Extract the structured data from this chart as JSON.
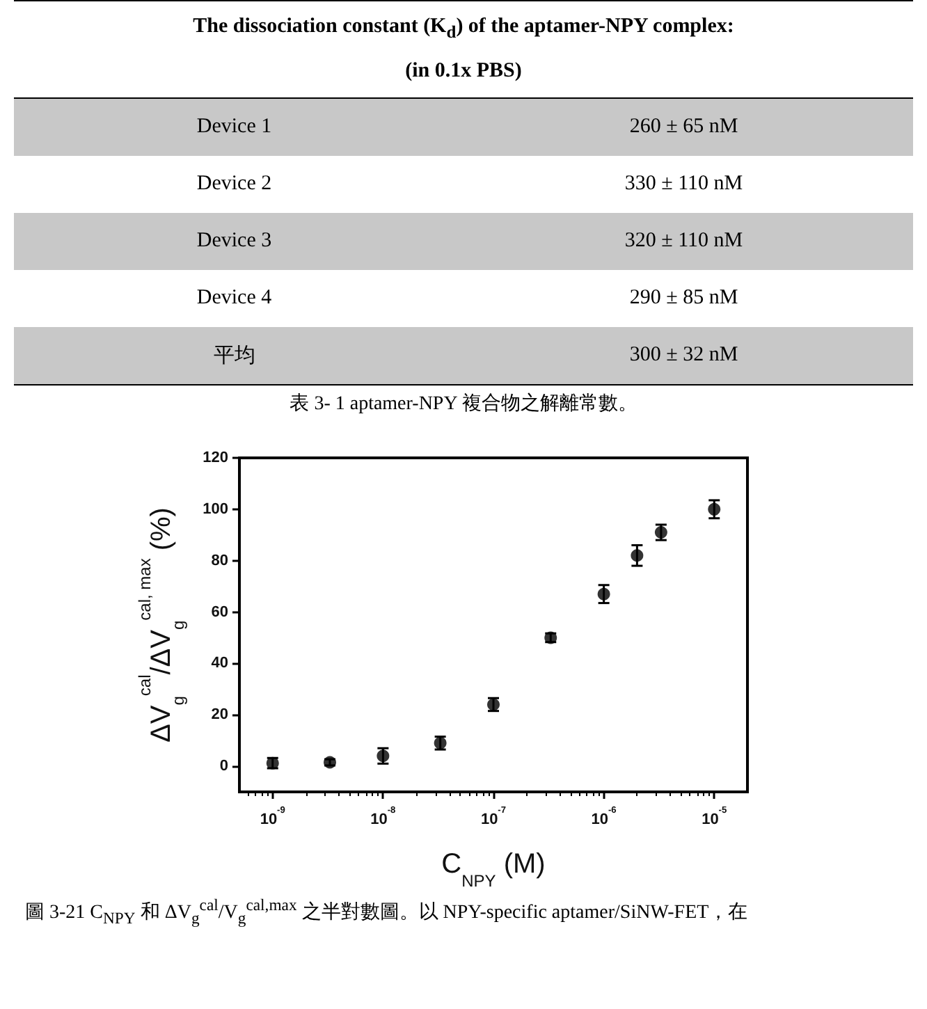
{
  "chart_data": [
    {
      "type": "other",
      "title": "The dissociation constant (K$_{d}$) of the aptamer-NPY complex:",
      "subtitle": "(in 0.1x PBS)",
      "categories": [
        "Device 1",
        "Device 2",
        "Device 3",
        "Device 4",
        "平均"
      ],
      "annotations": [
        "260 ± 65 nM",
        "330 ± 110 nM",
        "320 ± 110 nM",
        "290 ± 85 nM",
        "300 ± 32 nM",
        "表 3- 1 aptamer-NPY 複合物之解離常數。"
      ]
    },
    {
      "type": "scatter",
      "xlabel": "C$_{NPY}$ (M)",
      "ylabel": "ΔV$_{g}$$^{cal}$/ΔV$_{g}$$^{cal, max}$ (%)",
      "x": [
        1e-09,
        3.3e-09,
        1e-08,
        3.3e-08,
        1e-07,
        3.3e-07,
        1e-06,
        2e-06,
        3.3e-06,
        1e-05
      ],
      "values": [
        1.2,
        1.5,
        4,
        9,
        24,
        50,
        67,
        82,
        91,
        100
      ],
      "errors": [
        2,
        1.2,
        3,
        2.5,
        2.5,
        1.7,
        3.5,
        4,
        3,
        3.5
      ],
      "color": "#000000",
      "marker": "circle",
      "log": "x",
      "grid": false,
      "xlim": [
        5e-10,
        2e-05
      ],
      "xticks": [
        {
          "value": 1e-09,
          "label": "10$^{-9}$"
        },
        {
          "value": 1e-08,
          "label": "10$^{-8}$"
        },
        {
          "value": 1e-07,
          "label": "10$^{-7}$"
        },
        {
          "value": 1e-06,
          "label": "10$^{-6}$"
        },
        {
          "value": 1e-05,
          "label": "10$^{-5}$"
        }
      ],
      "ylim": [
        -10,
        120
      ],
      "yticks": [
        0,
        20,
        40,
        60,
        80,
        100,
        120
      ],
      "annotations": [
        "圖 3-21 C$_{NPY}$ 和 ΔV$_{g}$$^{cal}$/V$_{g}$$^{cal,max}$ 之半對數圖。以 NPY-specific aptamer/SiNW-FET，在"
      ]
    }
  ]
}
